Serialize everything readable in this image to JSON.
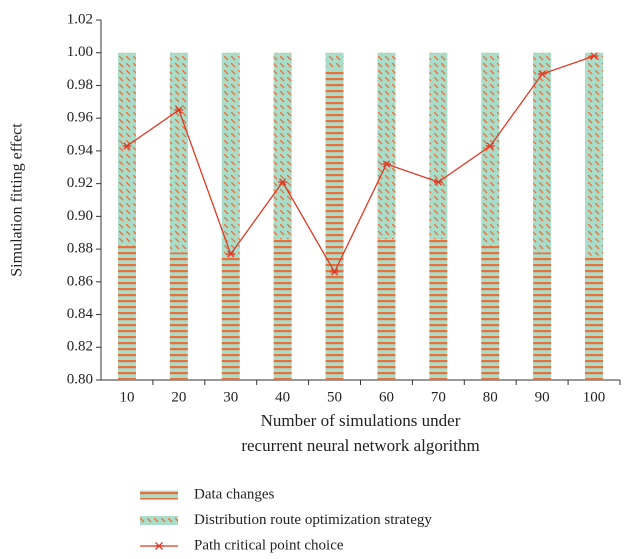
{
  "chart_data": {
    "type": "bar",
    "xlabel": "Number of simulations under\nrecurrent neural network algorithm",
    "ylabel": "Simulation fitting effect",
    "categories": [
      "10",
      "20",
      "30",
      "40",
      "50",
      "60",
      "70",
      "80",
      "90",
      "100"
    ],
    "series": [
      {
        "name": "Data changes",
        "color": "#e8703a",
        "values": [
          0.882,
          0.878,
          0.876,
          0.886,
          0.99,
          0.886,
          0.886,
          0.882,
          0.878,
          0.876
        ]
      },
      {
        "name": "Distribution route optimization strategy",
        "color": "#a9dcc9",
        "values": [
          0.118,
          0.122,
          0.124,
          0.114,
          0.01,
          0.114,
          0.114,
          0.118,
          0.122,
          0.124
        ]
      },
      {
        "name": "Path critical point choice",
        "type": "line",
        "color": "#e03a25",
        "values": [
          0.943,
          0.965,
          0.877,
          0.921,
          0.866,
          0.932,
          0.921,
          0.943,
          0.987,
          0.998
        ]
      }
    ],
    "ylim": [
      0.8,
      1.02
    ],
    "yticks": [
      {
        "value": 0.8,
        "label": "0.80"
      },
      {
        "value": 0.82,
        "label": "0.82"
      },
      {
        "value": 0.84,
        "label": "0.84"
      },
      {
        "value": 0.86,
        "label": "0.86"
      },
      {
        "value": 0.88,
        "label": "0.88"
      },
      {
        "value": 0.9,
        "label": "0.90"
      },
      {
        "value": 0.92,
        "label": "0.92"
      },
      {
        "value": 0.94,
        "label": "0.94"
      },
      {
        "value": 0.96,
        "label": "0.96"
      },
      {
        "value": 0.98,
        "label": "0.98"
      },
      {
        "value": 1.0,
        "label": "1.00"
      },
      {
        "value": 1.02,
        "label": "1.02"
      }
    ],
    "legend": "bottom"
  }
}
